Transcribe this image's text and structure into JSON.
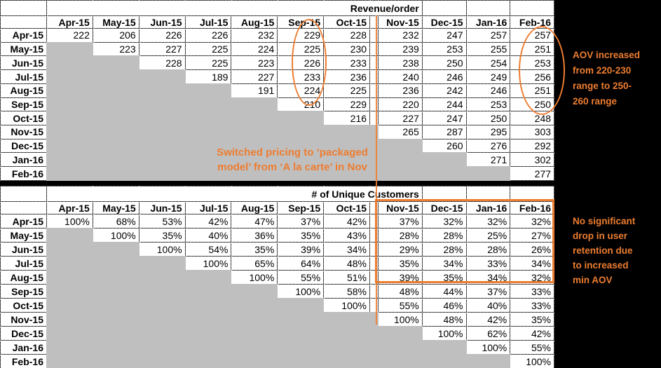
{
  "colors": {
    "accent_orange": "#ED7D31",
    "triangle_fill": "#BFBFBF",
    "page_background": "#000000"
  },
  "months": [
    "Apr-15",
    "May-15",
    "Jun-15",
    "Jul-15",
    "Aug-15",
    "Sep-15",
    "Oct-15",
    "Nov-15",
    "Dec-15",
    "Jan-16",
    "Feb-16"
  ],
  "revenue_table": {
    "title": "Revenue/order",
    "rows": [
      {
        "label": "Apr-15",
        "values": [
          222,
          206,
          226,
          226,
          232,
          229,
          228,
          232,
          247,
          257,
          257
        ]
      },
      {
        "label": "May-15",
        "values": [
          223,
          227,
          225,
          224,
          225,
          230,
          239,
          253,
          255,
          251
        ]
      },
      {
        "label": "Jun-15",
        "values": [
          228,
          225,
          223,
          226,
          233,
          238,
          250,
          254,
          253
        ]
      },
      {
        "label": "Jul-15",
        "values": [
          189,
          227,
          233,
          236,
          240,
          246,
          249,
          256
        ]
      },
      {
        "label": "Aug-15",
        "values": [
          191,
          224,
          225,
          236,
          242,
          246,
          251
        ]
      },
      {
        "label": "Sep-15",
        "values": [
          210,
          229,
          220,
          244,
          253,
          250
        ]
      },
      {
        "label": "Oct-15",
        "values": [
          216,
          227,
          247,
          250,
          248
        ]
      },
      {
        "label": "Nov-15",
        "values": [
          265,
          287,
          295,
          303
        ]
      },
      {
        "label": "Dec-15",
        "values": [
          260,
          276,
          292
        ]
      },
      {
        "label": "Jan-16",
        "values": [
          271,
          302
        ]
      },
      {
        "label": "Feb-16",
        "values": [
          277
        ]
      }
    ]
  },
  "customers_table": {
    "title": "# of Unique Customers",
    "rows": [
      {
        "label": "Apr-15",
        "values": [
          "100%",
          "68%",
          "53%",
          "42%",
          "47%",
          "37%",
          "42%",
          "37%",
          "32%",
          "32%",
          "32%"
        ]
      },
      {
        "label": "May-15",
        "values": [
          "100%",
          "35%",
          "40%",
          "36%",
          "35%",
          "43%",
          "28%",
          "28%",
          "25%",
          "27%"
        ]
      },
      {
        "label": "Jun-15",
        "values": [
          "100%",
          "54%",
          "35%",
          "39%",
          "34%",
          "29%",
          "28%",
          "28%",
          "26%"
        ]
      },
      {
        "label": "Jul-15",
        "values": [
          "100%",
          "65%",
          "64%",
          "48%",
          "35%",
          "34%",
          "33%",
          "34%"
        ]
      },
      {
        "label": "Aug-15",
        "values": [
          "100%",
          "55%",
          "51%",
          "39%",
          "35%",
          "34%",
          "32%"
        ]
      },
      {
        "label": "Sep-15",
        "values": [
          "100%",
          "58%",
          "48%",
          "44%",
          "37%",
          "33%"
        ]
      },
      {
        "label": "Oct-15",
        "values": [
          "100%",
          "55%",
          "46%",
          "40%",
          "33%"
        ]
      },
      {
        "label": "Nov-15",
        "values": [
          "100%",
          "48%",
          "42%",
          "35%"
        ]
      },
      {
        "label": "Dec-15",
        "values": [
          "100%",
          "62%",
          "42%"
        ]
      },
      {
        "label": "Jan-16",
        "values": [
          "100%",
          "55%"
        ]
      },
      {
        "label": "Feb-16",
        "values": [
          "100%"
        ]
      }
    ]
  },
  "annotations": {
    "pricing_note": {
      "lines": [
        "Switched pricing to ‘packaged",
        "model’ from ‘A la carte’ in Nov"
      ]
    },
    "aov_note": {
      "lines": [
        "AOV increased",
        "from 220-230",
        "range to 250-",
        "260 range"
      ]
    },
    "retention_note": {
      "lines": [
        "No significant",
        "drop in user",
        "retention due",
        "to increased",
        "min AOV"
      ]
    }
  }
}
